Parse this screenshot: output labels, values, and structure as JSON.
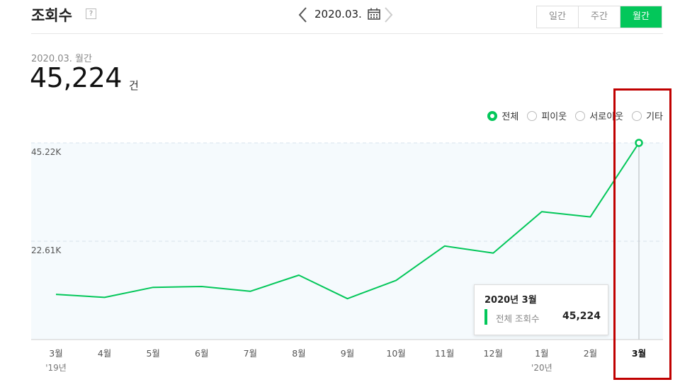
{
  "header": {
    "title": "조회수",
    "help_icon": "?",
    "period": "2020.03.",
    "segments": [
      "일간",
      "주간",
      "월간"
    ],
    "active_segment": "월간"
  },
  "summary": {
    "period_label": "2020.03. 월간",
    "value": "45,224",
    "unit": "건"
  },
  "filters": [
    {
      "label": "전체",
      "selected": true
    },
    {
      "label": "피이웃",
      "selected": false
    },
    {
      "label": "서로이웃",
      "selected": false
    },
    {
      "label": "기타",
      "selected": false
    }
  ],
  "tooltip": {
    "title": "2020년 3월",
    "label": "전체 조회수",
    "value": "45,224"
  },
  "colors": {
    "accent": "#03c75a",
    "highlight": "#c00000"
  },
  "chart_data": {
    "type": "line",
    "categories": [
      "3월",
      "4월",
      "5월",
      "6월",
      "7월",
      "8월",
      "9월",
      "10월",
      "11월",
      "12월",
      "1월",
      "2월",
      "3월"
    ],
    "year_labels": {
      "0": "'19년",
      "10": "'20년"
    },
    "series": [
      {
        "values": [
          10400,
          9700,
          12000,
          12200,
          11100,
          14800,
          9400,
          13600,
          21500,
          19900,
          29400,
          28200,
          45224
        ]
      }
    ],
    "yticks": [
      22610,
      45220
    ],
    "ytick_labels": [
      "22.61K",
      "45.22K"
    ],
    "ylim": [
      0,
      45220
    ],
    "grid": true,
    "legend": "top-right",
    "highlighted_category": "3월"
  }
}
